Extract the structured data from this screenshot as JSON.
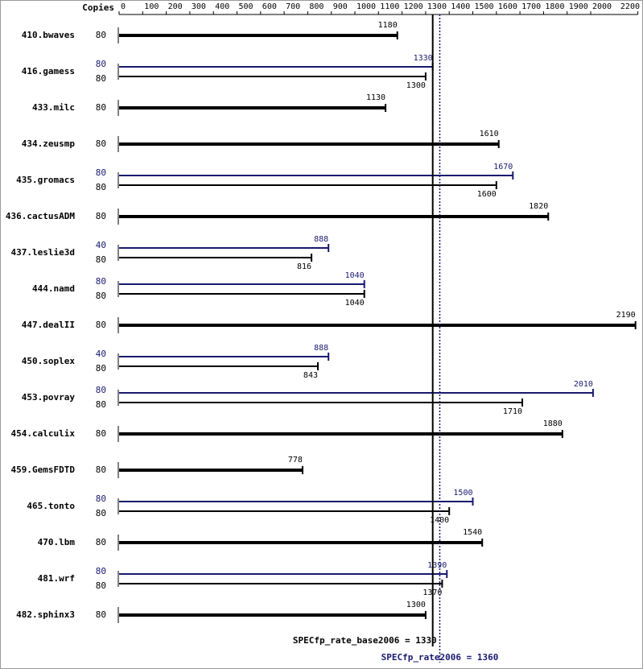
{
  "chart_data": {
    "type": "spec-bar",
    "copies_header": "Copies",
    "categories": [
      "410.bwaves",
      "416.gamess",
      "433.milc",
      "434.zeusmp",
      "435.gromacs",
      "436.cactusADM",
      "437.leslie3d",
      "444.namd",
      "447.dealII",
      "450.soplex",
      "453.povray",
      "454.calculix",
      "459.GemsFDTD",
      "465.tonto",
      "470.lbm",
      "481.wrf",
      "482.sphinx3"
    ],
    "series": [
      {
        "color": "#000000",
        "copies": [
          80,
          80,
          80,
          80,
          80,
          80,
          80,
          80,
          80,
          80,
          80,
          80,
          80,
          80,
          80,
          80,
          80
        ],
        "values": [
          1180,
          1300,
          1130,
          1610,
          1600,
          1820,
          816,
          1040,
          2190,
          843,
          1710,
          1880,
          778,
          1400,
          1540,
          1370,
          1300
        ]
      },
      {
        "color": "#191970",
        "copies": [
          null,
          80,
          null,
          null,
          80,
          null,
          40,
          80,
          null,
          40,
          80,
          null,
          null,
          80,
          null,
          80,
          null
        ],
        "values": [
          null,
          1330,
          null,
          null,
          1670,
          null,
          888,
          1040,
          null,
          888,
          2010,
          null,
          null,
          1500,
          null,
          1390,
          null
        ]
      }
    ],
    "reference_lines": [
      {
        "value": 1330,
        "label": "SPECfp_rate_base2006 = 1330",
        "color": "#000000"
      },
      {
        "value": 1360,
        "label": "SPECfp_rate2006 = 1360",
        "color": "#191970"
      }
    ],
    "xlim": [
      0,
      2200
    ],
    "xticks": [
      0,
      100,
      200,
      300,
      400,
      500,
      600,
      700,
      800,
      900,
      1000,
      1100,
      1200,
      1300,
      1400,
      1500,
      1600,
      1700,
      1800,
      1900,
      2000,
      2200
    ]
  }
}
